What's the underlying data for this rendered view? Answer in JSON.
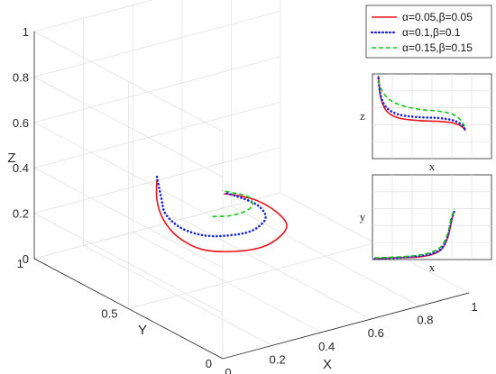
{
  "chart_data": {
    "type": "line",
    "projection": "3d",
    "xlabel": "X",
    "ylabel": "Y",
    "zlabel": "Z",
    "xlim": [
      0,
      1
    ],
    "ylim": [
      0,
      1
    ],
    "zlim": [
      0,
      1
    ],
    "x_ticks": [
      "0",
      "0.2",
      "0.4",
      "0.6",
      "0.8",
      "1"
    ],
    "y_ticks": [
      "0",
      "0.5",
      "1"
    ],
    "z_ticks": [
      "0",
      "0.2",
      "0.4",
      "0.6",
      "0.8",
      "1"
    ],
    "grid": true,
    "legend_position": "top-right",
    "series": [
      {
        "name": "α=0.05,β=0.05",
        "color": "#e8141c",
        "style": "solid",
        "points": [
          [
            0.1,
            0.48,
            0.55
          ],
          [
            0.1,
            0.48,
            0.46
          ],
          [
            0.11,
            0.46,
            0.38
          ],
          [
            0.14,
            0.42,
            0.31
          ],
          [
            0.2,
            0.37,
            0.26
          ],
          [
            0.3,
            0.33,
            0.24
          ],
          [
            0.4,
            0.31,
            0.24
          ],
          [
            0.48,
            0.32,
            0.26
          ],
          [
            0.52,
            0.34,
            0.29
          ],
          [
            0.51,
            0.38,
            0.33
          ],
          [
            0.47,
            0.43,
            0.37
          ],
          [
            0.42,
            0.47,
            0.39
          ],
          [
            0.38,
            0.49,
            0.4
          ]
        ]
      },
      {
        "name": "α=0.1,β=0.1",
        "color": "#1420e0",
        "style": "dotted",
        "points": [
          [
            0.1,
            0.48,
            0.56
          ],
          [
            0.11,
            0.47,
            0.47
          ],
          [
            0.12,
            0.46,
            0.4
          ],
          [
            0.16,
            0.43,
            0.34
          ],
          [
            0.23,
            0.4,
            0.3
          ],
          [
            0.31,
            0.37,
            0.29
          ],
          [
            0.39,
            0.36,
            0.29
          ],
          [
            0.45,
            0.37,
            0.31
          ],
          [
            0.47,
            0.39,
            0.33
          ],
          [
            0.46,
            0.42,
            0.36
          ],
          [
            0.43,
            0.46,
            0.38
          ],
          [
            0.39,
            0.49,
            0.4
          ]
        ]
      },
      {
        "name": "α=0.15,β=0.15",
        "color": "#18c818",
        "style": "dashed",
        "points": [
          [
            0.28,
            0.42,
            0.36
          ],
          [
            0.34,
            0.41,
            0.35
          ],
          [
            0.4,
            0.41,
            0.35
          ],
          [
            0.44,
            0.42,
            0.36
          ],
          [
            0.45,
            0.44,
            0.38
          ],
          [
            0.44,
            0.46,
            0.39
          ],
          [
            0.41,
            0.48,
            0.4
          ],
          [
            0.38,
            0.5,
            0.41
          ]
        ]
      }
    ],
    "insets": [
      {
        "xlabel": "x",
        "ylabel": "z",
        "series": [
          {
            "name": "α=0.05,β=0.05",
            "xy": [
              [
                0.05,
                0.98
              ],
              [
                0.07,
                0.72
              ],
              [
                0.12,
                0.56
              ],
              [
                0.22,
                0.48
              ],
              [
                0.38,
                0.45
              ],
              [
                0.55,
                0.44
              ],
              [
                0.68,
                0.42
              ],
              [
                0.75,
                0.38
              ],
              [
                0.78,
                0.33
              ]
            ]
          },
          {
            "name": "α=0.1,β=0.1",
            "xy": [
              [
                0.05,
                0.95
              ],
              [
                0.07,
                0.74
              ],
              [
                0.12,
                0.6
              ],
              [
                0.22,
                0.52
              ],
              [
                0.38,
                0.49
              ],
              [
                0.55,
                0.48
              ],
              [
                0.68,
                0.45
              ],
              [
                0.75,
                0.4
              ],
              [
                0.78,
                0.34
              ]
            ]
          },
          {
            "name": "α=0.15,β=0.15",
            "xy": [
              [
                0.05,
                0.92
              ],
              [
                0.08,
                0.8
              ],
              [
                0.14,
                0.7
              ],
              [
                0.24,
                0.63
              ],
              [
                0.4,
                0.58
              ],
              [
                0.56,
                0.56
              ],
              [
                0.68,
                0.52
              ],
              [
                0.75,
                0.44
              ],
              [
                0.78,
                0.35
              ]
            ]
          }
        ]
      },
      {
        "xlabel": "x",
        "ylabel": "y",
        "series": [
          {
            "name": "α=0.05,β=0.05",
            "xy": [
              [
                0.02,
                0.01
              ],
              [
                0.2,
                0.02
              ],
              [
                0.38,
                0.03
              ],
              [
                0.5,
                0.06
              ],
              [
                0.58,
                0.12
              ],
              [
                0.63,
                0.25
              ],
              [
                0.66,
                0.42
              ],
              [
                0.68,
                0.55
              ]
            ]
          },
          {
            "name": "α=0.1,β=0.1",
            "xy": [
              [
                0.02,
                0.01
              ],
              [
                0.2,
                0.02
              ],
              [
                0.38,
                0.04
              ],
              [
                0.5,
                0.07
              ],
              [
                0.58,
                0.13
              ],
              [
                0.63,
                0.27
              ],
              [
                0.66,
                0.45
              ],
              [
                0.69,
                0.58
              ]
            ]
          },
          {
            "name": "α=0.15,β=0.15",
            "xy": [
              [
                0.02,
                0.02
              ],
              [
                0.2,
                0.03
              ],
              [
                0.38,
                0.05
              ],
              [
                0.5,
                0.09
              ],
              [
                0.58,
                0.16
              ],
              [
                0.63,
                0.3
              ],
              [
                0.66,
                0.48
              ],
              [
                0.69,
                0.6
              ]
            ]
          }
        ]
      }
    ]
  }
}
